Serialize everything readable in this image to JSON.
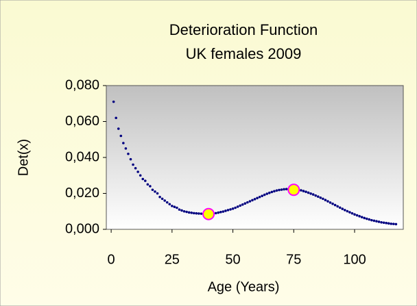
{
  "chart_data": {
    "type": "scatter",
    "title": "Deterioration Function",
    "subtitle": "UK females 2009",
    "x_label": "Age (Years)",
    "y_label": "Det(x)",
    "xlim": [
      -2,
      120
    ],
    "ylim": [
      0,
      0.08
    ],
    "xticks": [
      0,
      25,
      50,
      75,
      100
    ],
    "yticks": [
      {
        "value": 0,
        "label": "0,000"
      },
      {
        "value": 0.02,
        "label": "0,020"
      },
      {
        "value": 0.04,
        "label": "0,040"
      },
      {
        "value": 0.06,
        "label": "0,060"
      },
      {
        "value": 0.08,
        "label": "0,080"
      }
    ],
    "series": [
      {
        "color": "#000080",
        "marker_size": 1.8,
        "x": [
          1,
          2,
          3,
          4,
          5,
          6,
          7,
          8,
          9,
          10,
          11,
          12,
          13,
          14,
          15,
          16,
          17,
          18,
          19,
          20,
          21,
          22,
          23,
          24,
          25,
          26,
          27,
          28,
          29,
          30,
          31,
          32,
          33,
          34,
          35,
          36,
          37,
          38,
          39,
          40,
          41,
          42,
          43,
          44,
          45,
          46,
          47,
          48,
          49,
          50,
          51,
          52,
          53,
          54,
          55,
          56,
          57,
          58,
          59,
          60,
          61,
          62,
          63,
          64,
          65,
          66,
          67,
          68,
          69,
          70,
          71,
          72,
          73,
          74,
          75,
          76,
          77,
          78,
          79,
          80,
          81,
          82,
          83,
          84,
          85,
          86,
          87,
          88,
          89,
          90,
          91,
          92,
          93,
          94,
          95,
          96,
          97,
          98,
          99,
          100,
          101,
          102,
          103,
          104,
          105,
          106,
          107,
          108,
          109,
          110,
          111,
          112,
          113,
          114,
          115,
          116,
          117
        ],
        "values": [
          0.071,
          0.062,
          0.056,
          0.052,
          0.048,
          0.045,
          0.042,
          0.039,
          0.036,
          0.034,
          0.032,
          0.03,
          0.028,
          0.027,
          0.025,
          0.024,
          0.022,
          0.021,
          0.02,
          0.018,
          0.017,
          0.016,
          0.015,
          0.014,
          0.013,
          0.0125,
          0.012,
          0.011,
          0.0105,
          0.01,
          0.0097,
          0.0094,
          0.0092,
          0.009,
          0.0089,
          0.0088,
          0.0087,
          0.0086,
          0.0085,
          0.0085,
          0.0086,
          0.0088,
          0.009,
          0.0093,
          0.0096,
          0.0099,
          0.0103,
          0.0107,
          0.0111,
          0.0115,
          0.012,
          0.0126,
          0.0132,
          0.0138,
          0.0144,
          0.015,
          0.0156,
          0.0162,
          0.0168,
          0.0174,
          0.018,
          0.0186,
          0.0192,
          0.0198,
          0.0203,
          0.0208,
          0.0212,
          0.0216,
          0.0219,
          0.0221,
          0.0223,
          0.0224,
          0.0225,
          0.0225,
          0.0224,
          0.0222,
          0.022,
          0.0217,
          0.0213,
          0.0209,
          0.0204,
          0.0199,
          0.0194,
          0.0188,
          0.0182,
          0.0176,
          0.017,
          0.0163,
          0.0156,
          0.0149,
          0.0142,
          0.0135,
          0.0128,
          0.0121,
          0.0114,
          0.0107,
          0.0101,
          0.0095,
          0.0089,
          0.0083,
          0.0078,
          0.0073,
          0.0068,
          0.0063,
          0.0059,
          0.0055,
          0.0051,
          0.0048,
          0.0045,
          0.0042,
          0.0039,
          0.0037,
          0.0035,
          0.0033,
          0.0031,
          0.003,
          0.0029
        ]
      },
      {
        "color": "#ffff00",
        "edge_color": "#ff00ff",
        "marker_size": 8,
        "x": [
          40,
          75
        ],
        "values": [
          0.0085,
          0.022
        ]
      }
    ]
  }
}
